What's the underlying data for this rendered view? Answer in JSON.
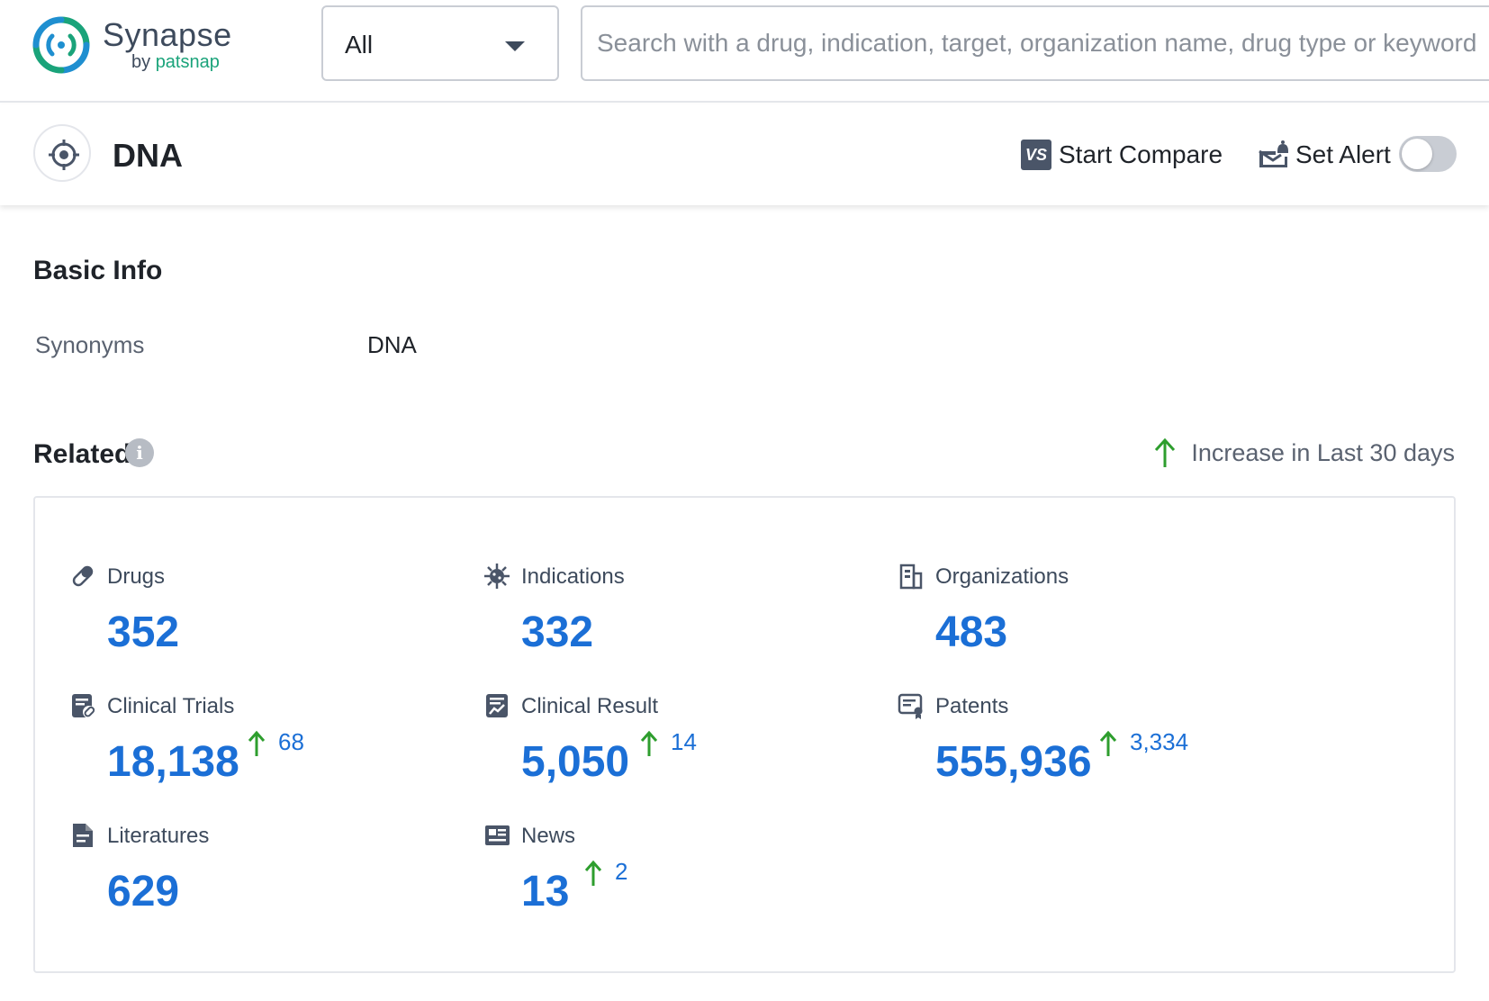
{
  "logo": {
    "name": "Synapse",
    "by": "by",
    "brand": "patsnap"
  },
  "header": {
    "select_value": "All",
    "search_placeholder": "Search with a drug, indication, target, organization name, drug type or keyword"
  },
  "entity": {
    "title": "DNA",
    "compare_badge": "VS",
    "compare_label": "Start Compare",
    "alert_label": "Set Alert",
    "alert_enabled": false
  },
  "basic_info": {
    "title": "Basic Info",
    "synonyms_label": "Synonyms",
    "synonyms_value": "DNA"
  },
  "related": {
    "title": "Related",
    "info_icon": "i",
    "legend_label": "Increase in Last 30 days",
    "colors": {
      "value": "#1b6fd6",
      "increase_arrow": "#2e9e2e",
      "icon": "#4a5568"
    },
    "stats": [
      {
        "icon": "pill-icon",
        "label": "Drugs",
        "value": "352",
        "increase": ""
      },
      {
        "icon": "virus-icon",
        "label": "Indications",
        "value": "332",
        "increase": ""
      },
      {
        "icon": "building-icon",
        "label": "Organizations",
        "value": "483",
        "increase": ""
      },
      {
        "icon": "clinical-trial-icon",
        "label": "Clinical Trials",
        "value": "18,138",
        "increase": "68"
      },
      {
        "icon": "clinical-result-icon",
        "label": "Clinical Result",
        "value": "5,050",
        "increase": "14"
      },
      {
        "icon": "patent-icon",
        "label": "Patents",
        "value": "555,936",
        "increase": "3,334"
      },
      {
        "icon": "document-icon",
        "label": "Literatures",
        "value": "629",
        "increase": ""
      },
      {
        "icon": "news-icon",
        "label": "News",
        "value": "13",
        "increase": "2"
      }
    ]
  }
}
